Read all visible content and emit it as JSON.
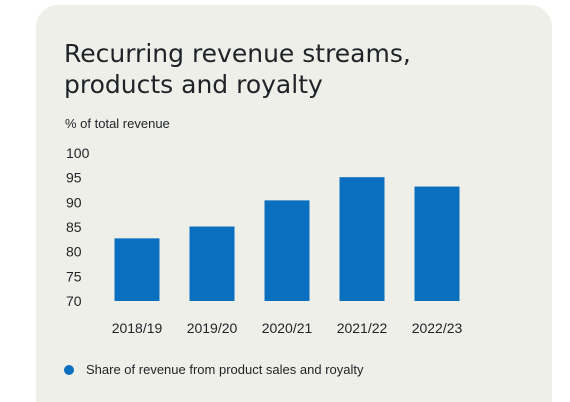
{
  "chart_data": {
    "type": "bar",
    "title": "Recurring revenue streams, products and royalty",
    "subtitle": "% of total revenue",
    "categories": [
      "2018/19",
      "2019/20",
      "2020/21",
      "2021/22",
      "2022/23"
    ],
    "series": [
      {
        "name": "Share of revenue from product sales and royalty",
        "values": [
          82.7,
          85.1,
          90.4,
          95.1,
          93.2
        ]
      }
    ],
    "ylim": [
      70,
      100
    ],
    "yticks": [
      70,
      75,
      80,
      85,
      90,
      95,
      100
    ],
    "grid": false,
    "legend_position": "bottom-left",
    "bar_color": "#0b6fc0"
  }
}
